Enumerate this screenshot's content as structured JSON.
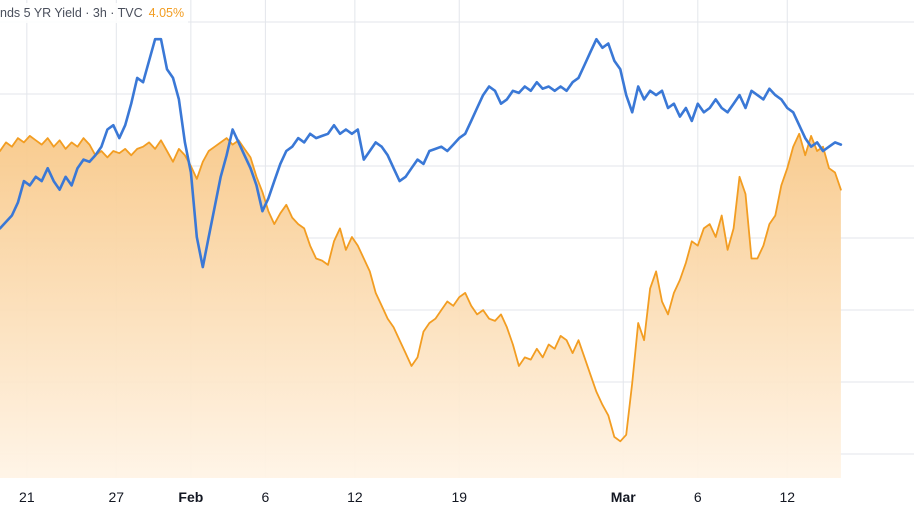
{
  "legend": {
    "label": "nds 5 YR Yield · 3h · TVC",
    "value": "4.05%",
    "value_color": "#f29d22"
  },
  "colors": {
    "blue_line": "#3a78d6",
    "orange_line": "#f29d22",
    "orange_fill_top": "#f8c98a",
    "orange_fill_bottom": "#fff4e6",
    "grid": "#e3e6eb",
    "axis_text": "#131722"
  },
  "chart_data": {
    "type": "area",
    "x_axis": {
      "ticks": [
        {
          "label": "21",
          "x": 21
        },
        {
          "label": "27",
          "x": 27
        },
        {
          "label": "Feb",
          "x": 32,
          "bold": true
        },
        {
          "label": "6",
          "x": 37
        },
        {
          "label": "12",
          "x": 43
        },
        {
          "label": "19",
          "x": 50
        },
        {
          "label": "Mar",
          "x": 61,
          "bold": true
        },
        {
          "label": "6",
          "x": 66
        },
        {
          "label": "12",
          "x": 72
        }
      ],
      "xlim": [
        19.2,
        80.5
      ]
    },
    "ylim": [
      0,
      100
    ],
    "grid": true,
    "series": [
      {
        "id": "orange",
        "style": "area",
        "points": [
          [
            19.2,
            70
          ],
          [
            19.6,
            72
          ],
          [
            20.0,
            71
          ],
          [
            20.4,
            73
          ],
          [
            20.8,
            72
          ],
          [
            21.2,
            73.5
          ],
          [
            21.6,
            72.5
          ],
          [
            22.0,
            71.5
          ],
          [
            22.4,
            73
          ],
          [
            22.8,
            71
          ],
          [
            23.2,
            72.5
          ],
          [
            23.6,
            70.5
          ],
          [
            24.0,
            72
          ],
          [
            24.4,
            71
          ],
          [
            24.8,
            73
          ],
          [
            25.2,
            71.5
          ],
          [
            25.6,
            69
          ],
          [
            26.0,
            70
          ],
          [
            26.4,
            68.5
          ],
          [
            26.8,
            70
          ],
          [
            27.2,
            69.5
          ],
          [
            27.6,
            70.5
          ],
          [
            28.0,
            69
          ],
          [
            28.4,
            70.5
          ],
          [
            28.8,
            71
          ],
          [
            29.2,
            72
          ],
          [
            29.6,
            70.5
          ],
          [
            30.0,
            72.5
          ],
          [
            30.4,
            70
          ],
          [
            30.8,
            67.5
          ],
          [
            31.2,
            70.5
          ],
          [
            31.6,
            69
          ],
          [
            32.0,
            66.5
          ],
          [
            32.4,
            63.5
          ],
          [
            32.8,
            67.5
          ],
          [
            33.2,
            70
          ],
          [
            33.6,
            71
          ],
          [
            34.0,
            72
          ],
          [
            34.4,
            73
          ],
          [
            34.8,
            71.5
          ],
          [
            35.2,
            72.5
          ],
          [
            35.6,
            70.5
          ],
          [
            36.0,
            68.5
          ],
          [
            36.4,
            64
          ],
          [
            36.8,
            60.5
          ],
          [
            37.2,
            56
          ],
          [
            37.6,
            53
          ],
          [
            38.0,
            55.5
          ],
          [
            38.4,
            57.5
          ],
          [
            38.8,
            54.5
          ],
          [
            39.2,
            53
          ],
          [
            39.6,
            52
          ],
          [
            40.0,
            48
          ],
          [
            40.4,
            45
          ],
          [
            40.8,
            44.5
          ],
          [
            41.2,
            43.5
          ],
          [
            41.6,
            49
          ],
          [
            42.0,
            52
          ],
          [
            42.4,
            47
          ],
          [
            42.8,
            50
          ],
          [
            43.2,
            48
          ],
          [
            43.6,
            45
          ],
          [
            44.0,
            42
          ],
          [
            44.4,
            37
          ],
          [
            44.8,
            34
          ],
          [
            45.2,
            31
          ],
          [
            45.6,
            29
          ],
          [
            46.0,
            26
          ],
          [
            46.4,
            23
          ],
          [
            46.8,
            20
          ],
          [
            47.2,
            22
          ],
          [
            47.6,
            28
          ],
          [
            48.0,
            30
          ],
          [
            48.4,
            31
          ],
          [
            48.8,
            33
          ],
          [
            49.2,
            35
          ],
          [
            49.6,
            34
          ],
          [
            50.0,
            36
          ],
          [
            50.4,
            37
          ],
          [
            50.8,
            34
          ],
          [
            51.2,
            32
          ],
          [
            51.6,
            33
          ],
          [
            52.0,
            31
          ],
          [
            52.4,
            30.5
          ],
          [
            52.8,
            32
          ],
          [
            53.2,
            29
          ],
          [
            53.6,
            25
          ],
          [
            54.0,
            20
          ],
          [
            54.4,
            22
          ],
          [
            54.8,
            21.5
          ],
          [
            55.2,
            24
          ],
          [
            55.6,
            22
          ],
          [
            56.0,
            25
          ],
          [
            56.4,
            24
          ],
          [
            56.8,
            27
          ],
          [
            57.2,
            26
          ],
          [
            57.6,
            23
          ],
          [
            58.0,
            26
          ],
          [
            58.4,
            22
          ],
          [
            58.8,
            18
          ],
          [
            59.2,
            14
          ],
          [
            59.6,
            11
          ],
          [
            60.0,
            8.5
          ],
          [
            60.4,
            3.5
          ],
          [
            60.8,
            2.5
          ],
          [
            61.2,
            4
          ],
          [
            61.6,
            16
          ],
          [
            62.0,
            30
          ],
          [
            62.4,
            26
          ],
          [
            62.8,
            38
          ],
          [
            63.2,
            42
          ],
          [
            63.6,
            35
          ],
          [
            64.0,
            32
          ],
          [
            64.4,
            37
          ],
          [
            64.8,
            40
          ],
          [
            65.2,
            44
          ],
          [
            65.6,
            49
          ],
          [
            66.0,
            48
          ],
          [
            66.4,
            52
          ],
          [
            66.8,
            53
          ],
          [
            67.2,
            50
          ],
          [
            67.6,
            55
          ],
          [
            68.0,
            47
          ],
          [
            68.4,
            52
          ],
          [
            68.8,
            64
          ],
          [
            69.2,
            60
          ],
          [
            69.6,
            45
          ],
          [
            70.0,
            45
          ],
          [
            70.4,
            48
          ],
          [
            70.8,
            53
          ],
          [
            71.2,
            55
          ],
          [
            71.6,
            62
          ],
          [
            72.0,
            66
          ],
          [
            72.4,
            71
          ],
          [
            72.8,
            74
          ],
          [
            73.2,
            69
          ],
          [
            73.6,
            73.5
          ],
          [
            74.0,
            70
          ],
          [
            74.4,
            71
          ],
          [
            74.8,
            66
          ],
          [
            75.2,
            65
          ],
          [
            75.6,
            61
          ]
        ]
      },
      {
        "id": "blue",
        "style": "line",
        "points": [
          [
            19.2,
            52
          ],
          [
            19.6,
            53.5
          ],
          [
            20.0,
            55
          ],
          [
            20.4,
            58
          ],
          [
            20.8,
            63
          ],
          [
            21.2,
            62
          ],
          [
            21.6,
            64
          ],
          [
            22.0,
            63
          ],
          [
            22.4,
            66
          ],
          [
            22.8,
            63
          ],
          [
            23.2,
            61
          ],
          [
            23.6,
            64
          ],
          [
            24.0,
            62
          ],
          [
            24.4,
            66
          ],
          [
            24.8,
            68
          ],
          [
            25.2,
            67.5
          ],
          [
            25.6,
            69
          ],
          [
            26.0,
            71
          ],
          [
            26.4,
            75
          ],
          [
            26.8,
            76
          ],
          [
            27.2,
            73
          ],
          [
            27.6,
            76
          ],
          [
            28.0,
            81
          ],
          [
            28.4,
            87
          ],
          [
            28.8,
            86
          ],
          [
            29.2,
            91
          ],
          [
            29.6,
            96
          ],
          [
            30.0,
            96
          ],
          [
            30.4,
            89
          ],
          [
            30.8,
            87
          ],
          [
            31.2,
            82
          ],
          [
            31.6,
            72
          ],
          [
            32.0,
            65
          ],
          [
            32.4,
            50
          ],
          [
            32.8,
            43
          ],
          [
            33.2,
            50
          ],
          [
            33.6,
            57
          ],
          [
            34.0,
            64
          ],
          [
            34.4,
            69
          ],
          [
            34.8,
            75
          ],
          [
            35.2,
            72
          ],
          [
            35.6,
            69
          ],
          [
            36.0,
            66
          ],
          [
            36.4,
            62
          ],
          [
            36.8,
            56
          ],
          [
            37.2,
            59
          ],
          [
            37.6,
            63
          ],
          [
            38.0,
            67
          ],
          [
            38.4,
            70
          ],
          [
            38.8,
            71
          ],
          [
            39.2,
            73
          ],
          [
            39.6,
            72
          ],
          [
            40.0,
            74
          ],
          [
            40.4,
            73
          ],
          [
            40.8,
            73.5
          ],
          [
            41.2,
            74
          ],
          [
            41.6,
            76
          ],
          [
            42.0,
            74
          ],
          [
            42.4,
            75
          ],
          [
            42.8,
            74
          ],
          [
            43.2,
            75
          ],
          [
            43.6,
            68
          ],
          [
            44.0,
            70
          ],
          [
            44.4,
            72
          ],
          [
            44.8,
            71
          ],
          [
            45.2,
            69
          ],
          [
            45.6,
            66
          ],
          [
            46.0,
            63
          ],
          [
            46.4,
            64
          ],
          [
            46.8,
            66
          ],
          [
            47.2,
            68
          ],
          [
            47.6,
            67
          ],
          [
            48.0,
            70
          ],
          [
            48.4,
            70.5
          ],
          [
            48.8,
            71
          ],
          [
            49.2,
            70
          ],
          [
            49.6,
            71.5
          ],
          [
            50.0,
            73
          ],
          [
            50.4,
            74
          ],
          [
            50.8,
            77
          ],
          [
            51.2,
            80
          ],
          [
            51.6,
            83
          ],
          [
            52.0,
            85
          ],
          [
            52.4,
            84
          ],
          [
            52.8,
            81
          ],
          [
            53.2,
            82
          ],
          [
            53.6,
            84
          ],
          [
            54.0,
            83.5
          ],
          [
            54.4,
            85
          ],
          [
            54.8,
            84
          ],
          [
            55.2,
            86
          ],
          [
            55.6,
            84.5
          ],
          [
            56.0,
            85
          ],
          [
            56.4,
            84
          ],
          [
            56.8,
            85
          ],
          [
            57.2,
            84
          ],
          [
            57.6,
            86
          ],
          [
            58.0,
            87
          ],
          [
            58.4,
            90
          ],
          [
            58.8,
            93
          ],
          [
            59.2,
            96
          ],
          [
            59.6,
            94
          ],
          [
            60.0,
            95
          ],
          [
            60.4,
            91
          ],
          [
            60.8,
            89
          ],
          [
            61.2,
            83
          ],
          [
            61.6,
            79
          ],
          [
            62.0,
            85
          ],
          [
            62.4,
            82
          ],
          [
            62.8,
            84
          ],
          [
            63.2,
            83
          ],
          [
            63.6,
            84
          ],
          [
            64.0,
            80
          ],
          [
            64.4,
            81
          ],
          [
            64.8,
            78
          ],
          [
            65.2,
            80
          ],
          [
            65.6,
            77
          ],
          [
            66.0,
            81
          ],
          [
            66.4,
            79
          ],
          [
            66.8,
            80
          ],
          [
            67.2,
            82
          ],
          [
            67.6,
            80
          ],
          [
            68.0,
            79
          ],
          [
            68.4,
            81
          ],
          [
            68.8,
            83
          ],
          [
            69.2,
            80
          ],
          [
            69.6,
            84
          ],
          [
            70.0,
            83
          ],
          [
            70.4,
            82
          ],
          [
            70.8,
            84.5
          ],
          [
            71.2,
            83
          ],
          [
            71.6,
            82
          ],
          [
            72.0,
            80
          ],
          [
            72.4,
            79
          ],
          [
            72.8,
            76
          ],
          [
            73.2,
            73
          ],
          [
            73.6,
            71
          ],
          [
            74.0,
            72
          ],
          [
            74.4,
            70
          ],
          [
            74.8,
            71
          ],
          [
            75.2,
            72
          ],
          [
            75.6,
            71.5
          ]
        ]
      }
    ]
  }
}
